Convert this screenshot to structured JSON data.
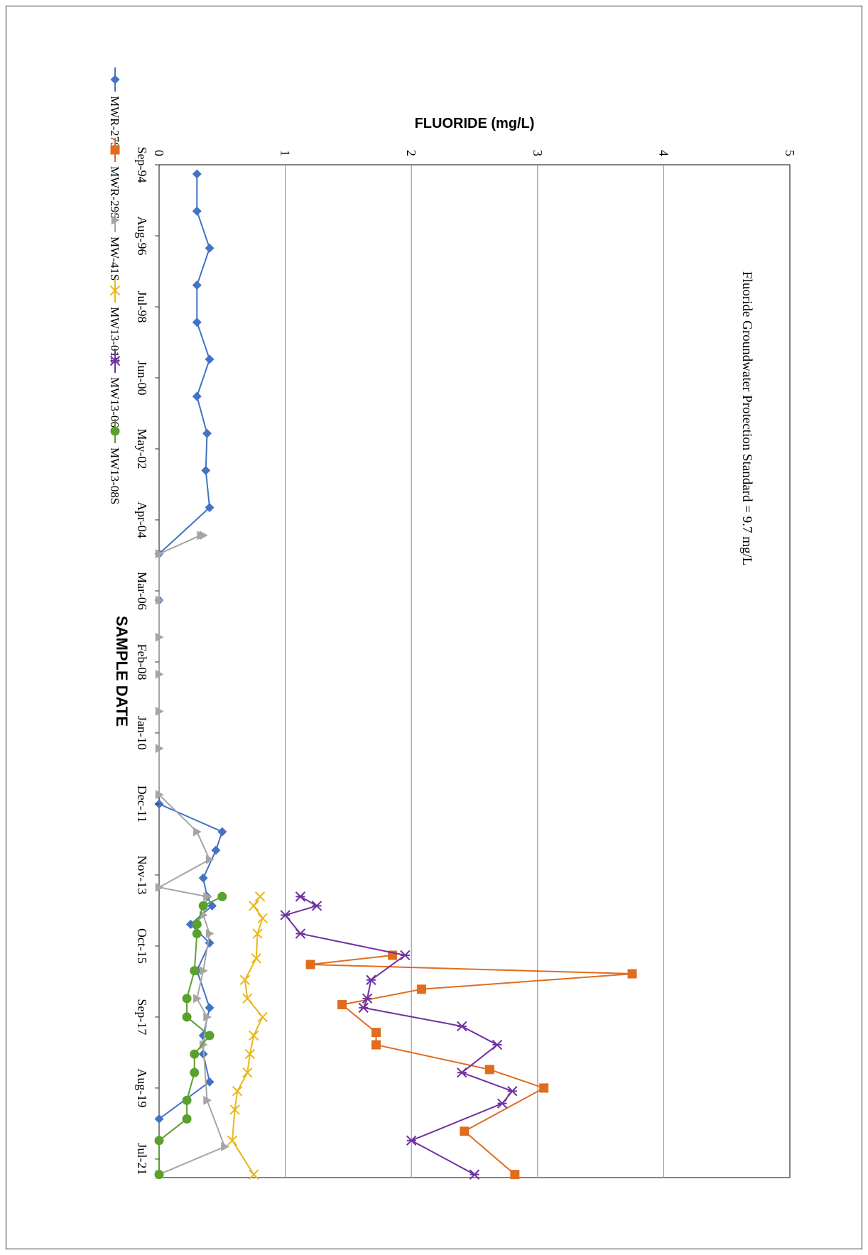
{
  "chart_data": {
    "type": "line",
    "orientation": "rotated-90-clockwise",
    "title": "",
    "xlabel": "SAMPLE DATE",
    "ylabel": "FLUORIDE (mg/L)",
    "ylim": [
      0,
      5
    ],
    "yticks": [
      0,
      1,
      2,
      3,
      4,
      5
    ],
    "xlim": [
      "1994-09-01",
      "2022-01-01"
    ],
    "xticks": [
      "Sep-94",
      "Aug-96",
      "Jul-98",
      "Jun-00",
      "May-02",
      "Apr-04",
      "Mar-06",
      "Feb-08",
      "Jan-10",
      "Dec-11",
      "Nov-13",
      "Oct-15",
      "Sep-17",
      "Aug-19",
      "Jul-21"
    ],
    "grid": "horizontal-major",
    "legend_position": "right",
    "annotation": "Fluoride Groundwater Protection Standard = 9.7 mg/L",
    "series": [
      {
        "name": "MWR-27S",
        "color": "#4472C4",
        "marker": "diamond",
        "points": [
          [
            "1994-12",
            0.3
          ],
          [
            "1995-12",
            0.3
          ],
          [
            "1996-12",
            0.4
          ],
          [
            "1997-12",
            0.3
          ],
          [
            "1998-12",
            0.3
          ],
          [
            "1999-12",
            0.4
          ],
          [
            "2000-12",
            0.3
          ],
          [
            "2001-12",
            0.38
          ],
          [
            "2002-12",
            0.37
          ],
          [
            "2003-12",
            0.4
          ],
          [
            "2005-03",
            0.0
          ],
          [
            "2006-06",
            0.0
          ],
          [
            "2011-12",
            0.0
          ],
          [
            "2012-09",
            0.5
          ],
          [
            "2013-03",
            0.45
          ],
          [
            "2013-12",
            0.35
          ],
          [
            "2014-06",
            0.38
          ],
          [
            "2014-09",
            0.42
          ],
          [
            "2015-03",
            0.25
          ],
          [
            "2015-09",
            0.4
          ],
          [
            "2016-06",
            0.3
          ],
          [
            "2017-06",
            0.4
          ],
          [
            "2018-03",
            0.35
          ],
          [
            "2018-09",
            0.35
          ],
          [
            "2019-06",
            0.4
          ],
          [
            "2020-06",
            0.0
          ]
        ]
      },
      {
        "name": "MWR-29S",
        "color": "#E06C1E",
        "marker": "square",
        "points": [
          [
            "2016-01",
            1.85
          ],
          [
            "2016-04",
            1.2
          ],
          [
            "2016-07",
            3.75
          ],
          [
            "2016-12",
            2.08
          ],
          [
            "2017-05",
            1.45
          ],
          [
            "2018-02",
            1.72
          ],
          [
            "2018-06",
            1.72
          ],
          [
            "2019-02",
            2.62
          ],
          [
            "2019-08",
            3.05
          ],
          [
            "2020-10",
            2.42
          ],
          [
            "2021-12",
            2.82
          ]
        ]
      },
      {
        "name": "MW-41S",
        "color": "#A5A5A5",
        "marker": "triangle",
        "points": [
          [
            "2004-09",
            0.35
          ],
          [
            "2004-09",
            0.33
          ],
          [
            "2005-03",
            0.0
          ],
          [
            "2005-03",
            0.0
          ],
          [
            "2006-06",
            0.0
          ],
          [
            "2007-06",
            0.0
          ],
          [
            "2008-06",
            0.0
          ],
          [
            "2009-06",
            0.0
          ],
          [
            "2010-06",
            0.0
          ],
          [
            "2011-09",
            0.0
          ],
          [
            "2012-09",
            0.3
          ],
          [
            "2013-06",
            0.4
          ],
          [
            "2014-03",
            0.0
          ],
          [
            "2014-06",
            0.38
          ],
          [
            "2014-12",
            0.35
          ],
          [
            "2015-06",
            0.4
          ],
          [
            "2016-06",
            0.35
          ],
          [
            "2017-03",
            0.3
          ],
          [
            "2017-09",
            0.38
          ],
          [
            "2018-06",
            0.35
          ],
          [
            "2019-12",
            0.38
          ],
          [
            "2021-03",
            0.52
          ],
          [
            "2021-12",
            0.0
          ]
        ]
      },
      {
        "name": "MW13-01S",
        "color": "#E8B818",
        "marker": "x",
        "points": [
          [
            "2014-06",
            0.8
          ],
          [
            "2014-09",
            0.75
          ],
          [
            "2015-01",
            0.82
          ],
          [
            "2015-06",
            0.78
          ],
          [
            "2016-02",
            0.77
          ],
          [
            "2016-09",
            0.68
          ],
          [
            "2017-03",
            0.7
          ],
          [
            "2017-09",
            0.82
          ],
          [
            "2018-03",
            0.75
          ],
          [
            "2018-09",
            0.72
          ],
          [
            "2019-03",
            0.7
          ],
          [
            "2019-09",
            0.62
          ],
          [
            "2020-03",
            0.6
          ],
          [
            "2021-01",
            0.58
          ],
          [
            "2021-12",
            0.75
          ]
        ]
      },
      {
        "name": "MW13-06S",
        "color": "#7030A0",
        "marker": "asterisk",
        "points": [
          [
            "2014-06",
            1.12
          ],
          [
            "2014-09",
            1.25
          ],
          [
            "2014-12",
            1.0
          ],
          [
            "2015-06",
            1.12
          ],
          [
            "2016-01",
            1.95
          ],
          [
            "2016-09",
            1.68
          ],
          [
            "2017-03",
            1.65
          ],
          [
            "2017-06",
            1.62
          ],
          [
            "2017-12",
            2.4
          ],
          [
            "2018-06",
            2.68
          ],
          [
            "2019-03",
            2.4
          ],
          [
            "2019-09",
            2.8
          ],
          [
            "2020-01",
            2.72
          ],
          [
            "2021-01",
            2.0
          ],
          [
            "2021-12",
            2.5
          ]
        ]
      },
      {
        "name": "MW13-08S",
        "color": "#5AA02C",
        "marker": "circle",
        "points": [
          [
            "2014-06",
            0.5
          ],
          [
            "2014-09",
            0.35
          ],
          [
            "2015-03",
            0.3
          ],
          [
            "2015-06",
            0.3
          ],
          [
            "2016-06",
            0.28
          ],
          [
            "2017-03",
            0.22
          ],
          [
            "2017-09",
            0.22
          ],
          [
            "2018-03",
            0.4
          ],
          [
            "2018-09",
            0.28
          ],
          [
            "2019-03",
            0.28
          ],
          [
            "2019-12",
            0.22
          ],
          [
            "2020-06",
            0.22
          ],
          [
            "2021-01",
            0.0
          ],
          [
            "2021-12",
            0.0
          ]
        ]
      }
    ]
  }
}
